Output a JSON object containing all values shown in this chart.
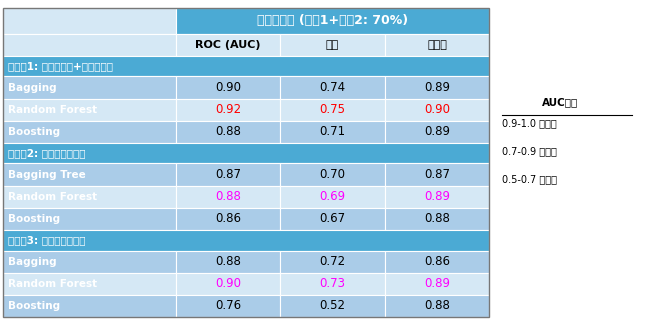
{
  "title": "訓練データ (時点1+時点2: 70%)",
  "col_headers": [
    "ROC (AUC)",
    "感度",
    "特異度"
  ],
  "section_headers": [
    "モデル1: 音声データ+属性データ",
    "モデル2: 属性データのみ",
    "モデル3: 音声データのみ"
  ],
  "rows": [
    {
      "label": "Bagging",
      "values": [
        "0.90",
        "0.74",
        "0.89"
      ],
      "colors": [
        "black",
        "black",
        "black"
      ]
    },
    {
      "label": "Random Forest",
      "values": [
        "0.92",
        "0.75",
        "0.90"
      ],
      "colors": [
        "red",
        "red",
        "red"
      ]
    },
    {
      "label": "Boosting",
      "values": [
        "0.88",
        "0.71",
        "0.89"
      ],
      "colors": [
        "black",
        "black",
        "black"
      ]
    },
    {
      "label": "Bagging Tree",
      "values": [
        "0.87",
        "0.70",
        "0.87"
      ],
      "colors": [
        "black",
        "black",
        "black"
      ]
    },
    {
      "label": "Random Forest",
      "values": [
        "0.88",
        "0.69",
        "0.89"
      ],
      "colors": [
        "magenta",
        "magenta",
        "magenta"
      ]
    },
    {
      "label": "Boosting",
      "values": [
        "0.86",
        "0.67",
        "0.88"
      ],
      "colors": [
        "black",
        "black",
        "black"
      ]
    },
    {
      "label": "Bagging",
      "values": [
        "0.88",
        "0.72",
        "0.86"
      ],
      "colors": [
        "black",
        "black",
        "black"
      ]
    },
    {
      "label": "Random Forest",
      "values": [
        "0.90",
        "0.73",
        "0.89"
      ],
      "colors": [
        "magenta",
        "magenta",
        "magenta"
      ]
    },
    {
      "label": "Boosting",
      "values": [
        "0.76",
        "0.52",
        "0.88"
      ],
      "colors": [
        "black",
        "black",
        "black"
      ]
    }
  ],
  "header_bg": "#4baad4",
  "section_header_bg": "#4baad4",
  "row_bg_dark": "#aacce8",
  "row_bg_light": "#d5e8f5",
  "col0_bg": "#d5e8f5",
  "legend_title": "AUC基準",
  "legend_lines": [
    "0.9-1.0 高精度",
    "0.7-0.9 中精度",
    "0.5-0.7 低精度"
  ],
  "fig_bg": "#ffffff"
}
